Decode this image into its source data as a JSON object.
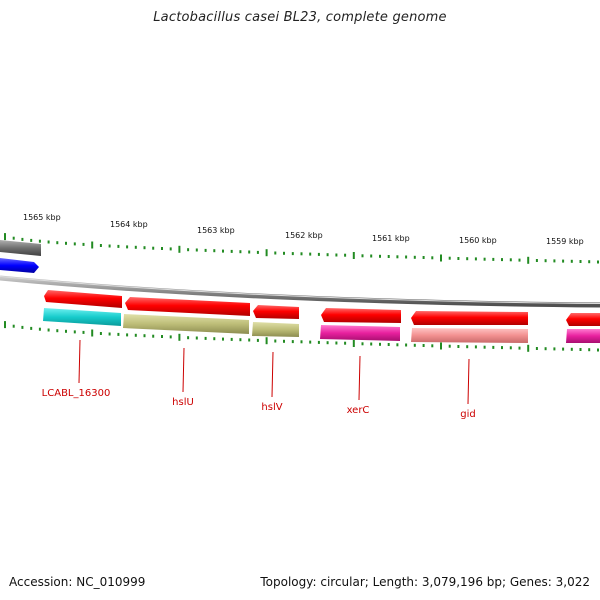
{
  "title": "Lactobacillus casei BL23, complete genome",
  "footer": {
    "accession": "Accession: NC_010999",
    "topology": "Topology: circular; Length: 3,079,196 bp; Genes: 3,022"
  },
  "ruler_labels": [
    "1565 kbp",
    "1564 kbp",
    "1563 kbp",
    "1562 kbp",
    "1561 kbp",
    "1560 kbp",
    "1559 kbp"
  ],
  "gene_labels": [
    "LCABL_16300",
    "hslU",
    "hslV",
    "xerC",
    "gid"
  ],
  "colors": {
    "forward_gene": "#ff0000",
    "cyan_gene": "#00c8c8",
    "olive_gene": "#b4b46e",
    "magenta_gene": "#e61e9b",
    "salmon_gene": "#f08c8c",
    "blue_gene": "#0000ff",
    "grey_gene": "#707070",
    "tick": "#228b22",
    "label": "#cc0000",
    "backbone": "#808080"
  }
}
